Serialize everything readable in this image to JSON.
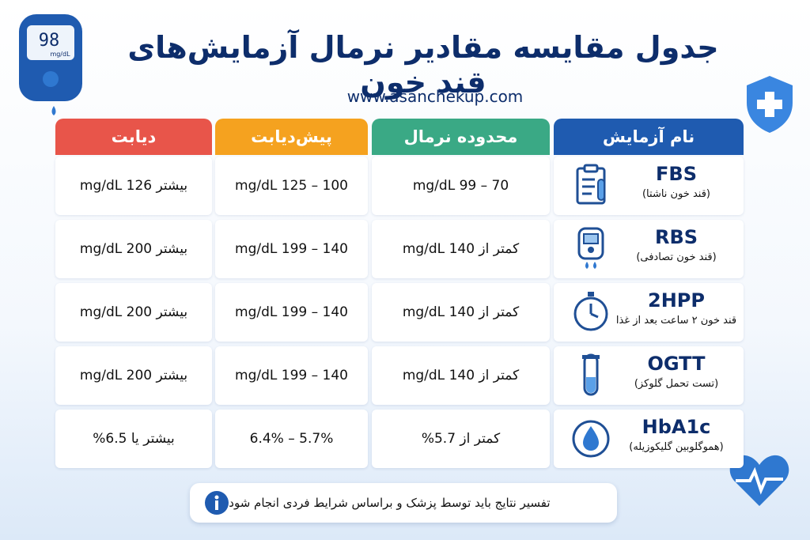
{
  "header": {
    "title": "جدول مقایسه مقادیر نرمال آزمایش‌های قند خون",
    "website": "www.asanchekup.com"
  },
  "device_screen": {
    "reading": "98",
    "unit": "mg/dL"
  },
  "table": {
    "headers": [
      "نام آزمایش",
      "محدوده نرمال",
      "پیش‌دیابت",
      "دیابت"
    ],
    "rows": [
      {
        "test": "FBS",
        "subtitle": "(قند خون ناشتا)",
        "normal": "70 – 99 mg/dL",
        "prediabetes": "100 – 125 mg/dL",
        "diabetes": "بیشتر 126 mg/dL"
      },
      {
        "test": "RBS",
        "subtitle": "(قند خون تصادفی)",
        "normal": "کمتر از 140 mg/dL",
        "prediabetes": "140 – 199 mg/dL",
        "diabetes": "بیشتر 200 mg/dL"
      },
      {
        "test": "2HPP",
        "subtitle": "قند خون ۲ ساعت بعد از غذا",
        "normal": "کمتر از 140 mg/dL",
        "prediabetes": "140 – 199 mg/dL",
        "diabetes": "بیشتر 200 mg/dL"
      },
      {
        "test": "OGTT",
        "subtitle": "(تست تحمل گلوکز)",
        "normal": "کمتر از 140 mg/dL",
        "prediabetes": "140 – 199 mg/dL",
        "diabetes": "بیشتر 200 mg/dL"
      },
      {
        "test": "HbA1c",
        "subtitle": "(هموگلوبین گلیکوزیله)",
        "normal": "کمتر از 5.7%",
        "prediabetes": "5.7% – 6.4%",
        "diabetes": "بیشتر یا 6.5%"
      }
    ]
  },
  "footer": {
    "note": "تفسیر نتایج باید توسط پزشک و براساس شرایط فردی انجام شود."
  }
}
